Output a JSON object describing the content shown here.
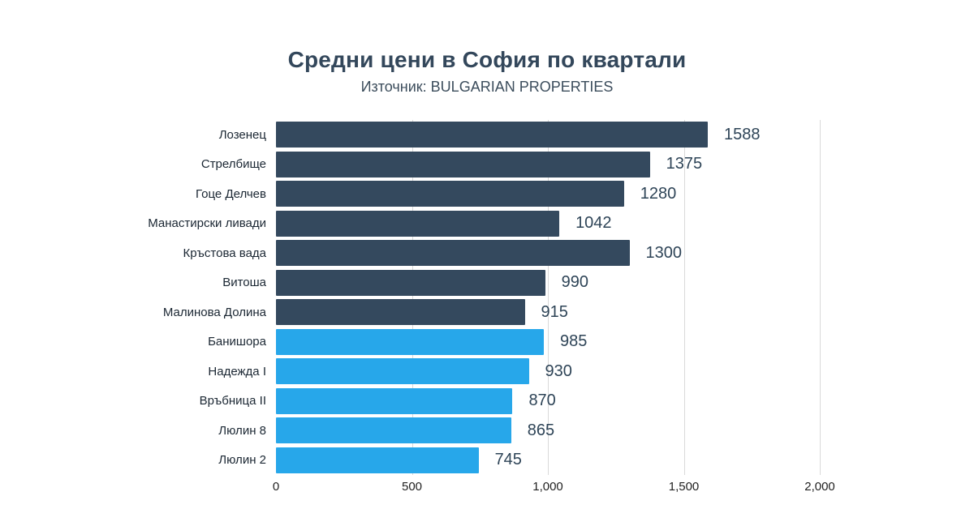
{
  "page": {
    "title": "Средни цени в София по квартали",
    "subtitle": "Източник: BULGARIAN PROPERTIES"
  },
  "colors": {
    "dark_bar": "#34495e",
    "blue_bar": "#27a7ea",
    "title_text": "#33475b",
    "value_text": "#2e4457",
    "grid": "#d9d9d9"
  },
  "chart_data": {
    "type": "bar",
    "orientation": "horizontal",
    "title": "Средни цени в София по квартали",
    "subtitle": "Източник: BULGARIAN PROPERTIES",
    "categories": [
      "Лозенец",
      "Стрелбище",
      "Гоце Делчев",
      "Манастирски ливади",
      "Кръстова вада",
      "Витоша",
      "Малинова Долина",
      "Банишора",
      "Надежда I",
      "Връбница II",
      "Люлин 8",
      "Люлин 2"
    ],
    "values": [
      1588,
      1375,
      1280,
      1042,
      1300,
      990,
      915,
      985,
      930,
      870,
      865,
      745
    ],
    "value_labels": [
      "1588",
      "1375",
      "1280",
      "1042",
      "1300",
      "990",
      "915",
      "985",
      "930",
      "870",
      "865",
      "745"
    ],
    "bar_colors": [
      "#34495e",
      "#34495e",
      "#34495e",
      "#34495e",
      "#34495e",
      "#34495e",
      "#34495e",
      "#27a7ea",
      "#27a7ea",
      "#27a7ea",
      "#27a7ea",
      "#27a7ea"
    ],
    "xlim": [
      0,
      2000
    ],
    "x_ticks": [
      "0",
      "500",
      "1,000",
      "1,500",
      "2,000"
    ],
    "x_tick_values": [
      0,
      500,
      1000,
      1500,
      2000
    ],
    "grid": true,
    "legend": "none",
    "xlabel": "",
    "ylabel": ""
  }
}
